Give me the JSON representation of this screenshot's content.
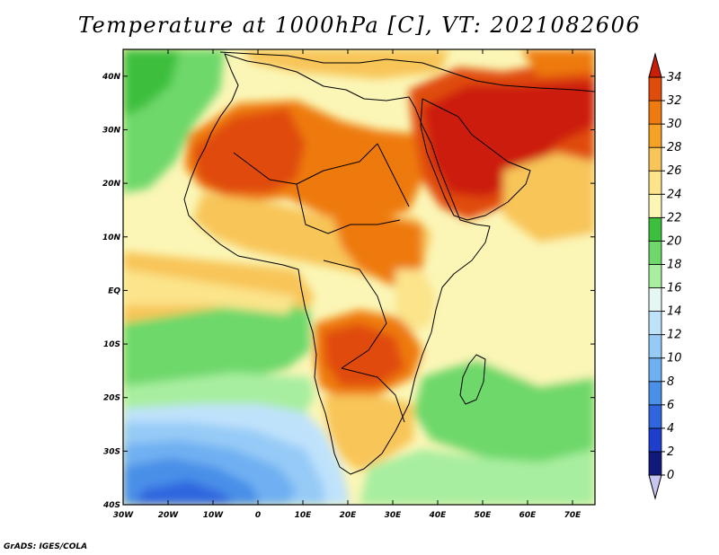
{
  "title": "Temperature at 1000hPa [C], VT: 2021082606",
  "credit": "GrADS: IGES/COLA",
  "map": {
    "lon_range": [
      -30,
      75
    ],
    "lat_range": [
      -40,
      45
    ],
    "lon_ticks": [
      {
        "value": -30,
        "label": "30W"
      },
      {
        "value": -20,
        "label": "20W"
      },
      {
        "value": -10,
        "label": "10W"
      },
      {
        "value": 0,
        "label": "0"
      },
      {
        "value": 10,
        "label": "10E"
      },
      {
        "value": 20,
        "label": "20E"
      },
      {
        "value": 30,
        "label": "30E"
      },
      {
        "value": 40,
        "label": "40E"
      },
      {
        "value": 50,
        "label": "50E"
      },
      {
        "value": 60,
        "label": "60E"
      },
      {
        "value": 70,
        "label": "70E"
      }
    ],
    "lat_ticks": [
      {
        "value": 40,
        "label": "40N"
      },
      {
        "value": 30,
        "label": "30N"
      },
      {
        "value": 20,
        "label": "20N"
      },
      {
        "value": 10,
        "label": "10N"
      },
      {
        "value": 0,
        "label": "EQ"
      },
      {
        "value": -10,
        "label": "10S"
      },
      {
        "value": -20,
        "label": "20S"
      },
      {
        "value": -30,
        "label": "30S"
      },
      {
        "value": -40,
        "label": "40S"
      }
    ]
  },
  "colorbar": {
    "levels": [
      0,
      2,
      4,
      6,
      8,
      10,
      12,
      14,
      16,
      18,
      20,
      22,
      24,
      26,
      28,
      30,
      32,
      34
    ],
    "colors": [
      "#c6c6f0",
      "#101a7a",
      "#1e3ecb",
      "#2f66df",
      "#4a8fe8",
      "#6fb0f2",
      "#96cbf7",
      "#bfe2fb",
      "#e4f7f3",
      "#a8eea0",
      "#6ed86a",
      "#3cbf3c",
      "#fbf6b6",
      "#fbe48a",
      "#f8c559",
      "#f5a227",
      "#ee7a10",
      "#e04c0c",
      "#cc1e07"
    ]
  }
}
